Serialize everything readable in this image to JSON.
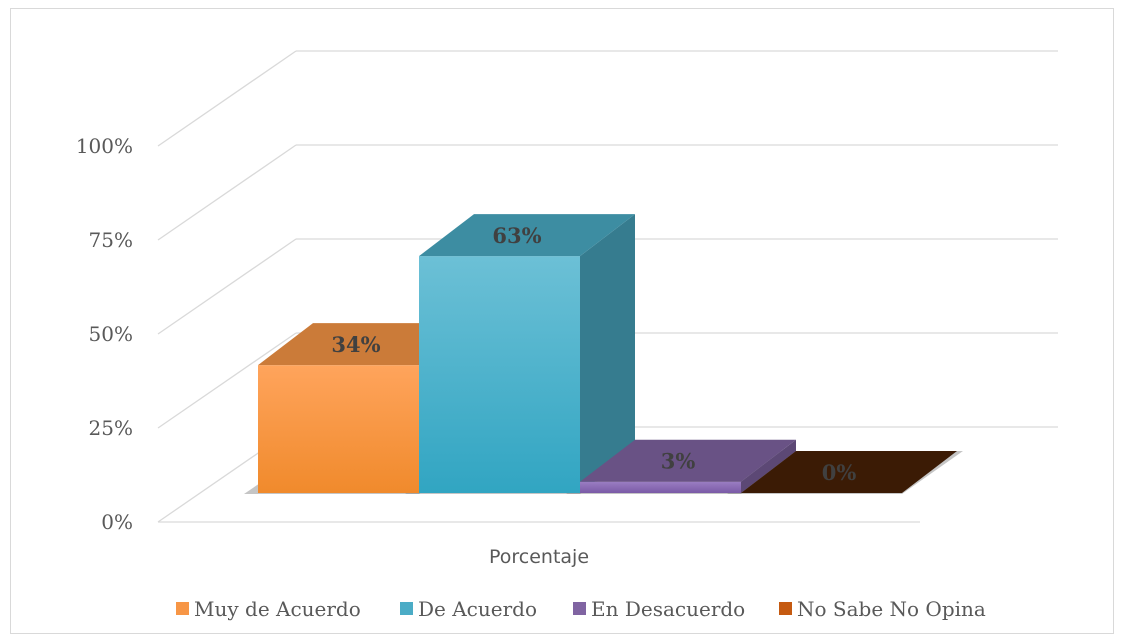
{
  "chart_data": {
    "type": "bar",
    "style": "3d-clustered-column",
    "title": "",
    "xlabel": "",
    "ylabel": "",
    "categories": [
      "Porcentaje"
    ],
    "series": [
      {
        "name": "Muy de Acuerdo",
        "values": [
          34
        ],
        "label": "34%",
        "color": "#f79646"
      },
      {
        "name": "De Acuerdo",
        "values": [
          63
        ],
        "label": "63%",
        "color": "#4bacc6"
      },
      {
        "name": "En Desacuerdo",
        "values": [
          3
        ],
        "label": "3%",
        "color": "#8064a2"
      },
      {
        "name": "No Sabe No Opina",
        "values": [
          0
        ],
        "label": "0%",
        "color": "#c55a11"
      }
    ],
    "ylim": [
      0,
      100
    ],
    "yticks": [
      {
        "value": 0,
        "label": "0%"
      },
      {
        "value": 25,
        "label": "25%"
      },
      {
        "value": 50,
        "label": "50%"
      },
      {
        "value": 75,
        "label": "75%"
      },
      {
        "value": 100,
        "label": "100%"
      }
    ],
    "grid": true,
    "legend_position": "bottom"
  }
}
